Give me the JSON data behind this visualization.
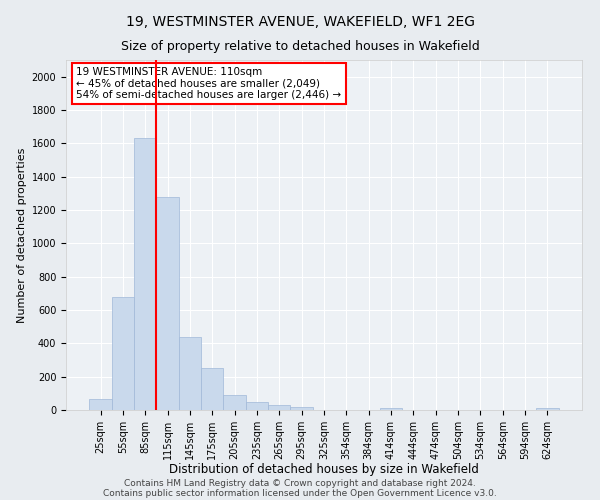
{
  "title": "19, WESTMINSTER AVENUE, WAKEFIELD, WF1 2EG",
  "subtitle": "Size of property relative to detached houses in Wakefield",
  "xlabel": "Distribution of detached houses by size in Wakefield",
  "ylabel": "Number of detached properties",
  "bar_labels": [
    "25sqm",
    "55sqm",
    "85sqm",
    "115sqm",
    "145sqm",
    "175sqm",
    "205sqm",
    "235sqm",
    "265sqm",
    "295sqm",
    "325sqm",
    "354sqm",
    "384sqm",
    "414sqm",
    "444sqm",
    "474sqm",
    "504sqm",
    "534sqm",
    "564sqm",
    "594sqm",
    "624sqm"
  ],
  "bar_values": [
    65,
    680,
    1630,
    1280,
    440,
    250,
    90,
    50,
    30,
    20,
    0,
    0,
    0,
    15,
    0,
    0,
    0,
    0,
    0,
    0,
    15
  ],
  "bar_color": "#c9d9ec",
  "bar_edgecolor": "#a0b8d8",
  "bar_width": 1.0,
  "vline_color": "#ff0000",
  "annotation_text": "19 WESTMINSTER AVENUE: 110sqm\n← 45% of detached houses are smaller (2,049)\n54% of semi-detached houses are larger (2,446) →",
  "ylim": [
    0,
    2100
  ],
  "yticks": [
    0,
    200,
    400,
    600,
    800,
    1000,
    1200,
    1400,
    1600,
    1800,
    2000
  ],
  "background_color": "#e8ecf0",
  "plot_background": "#edf1f5",
  "footer_line1": "Contains HM Land Registry data © Crown copyright and database right 2024.",
  "footer_line2": "Contains public sector information licensed under the Open Government Licence v3.0.",
  "title_fontsize": 10,
  "subtitle_fontsize": 9,
  "xlabel_fontsize": 8.5,
  "ylabel_fontsize": 8,
  "tick_fontsize": 7,
  "annotation_fontsize": 7.5,
  "footer_fontsize": 6.5
}
